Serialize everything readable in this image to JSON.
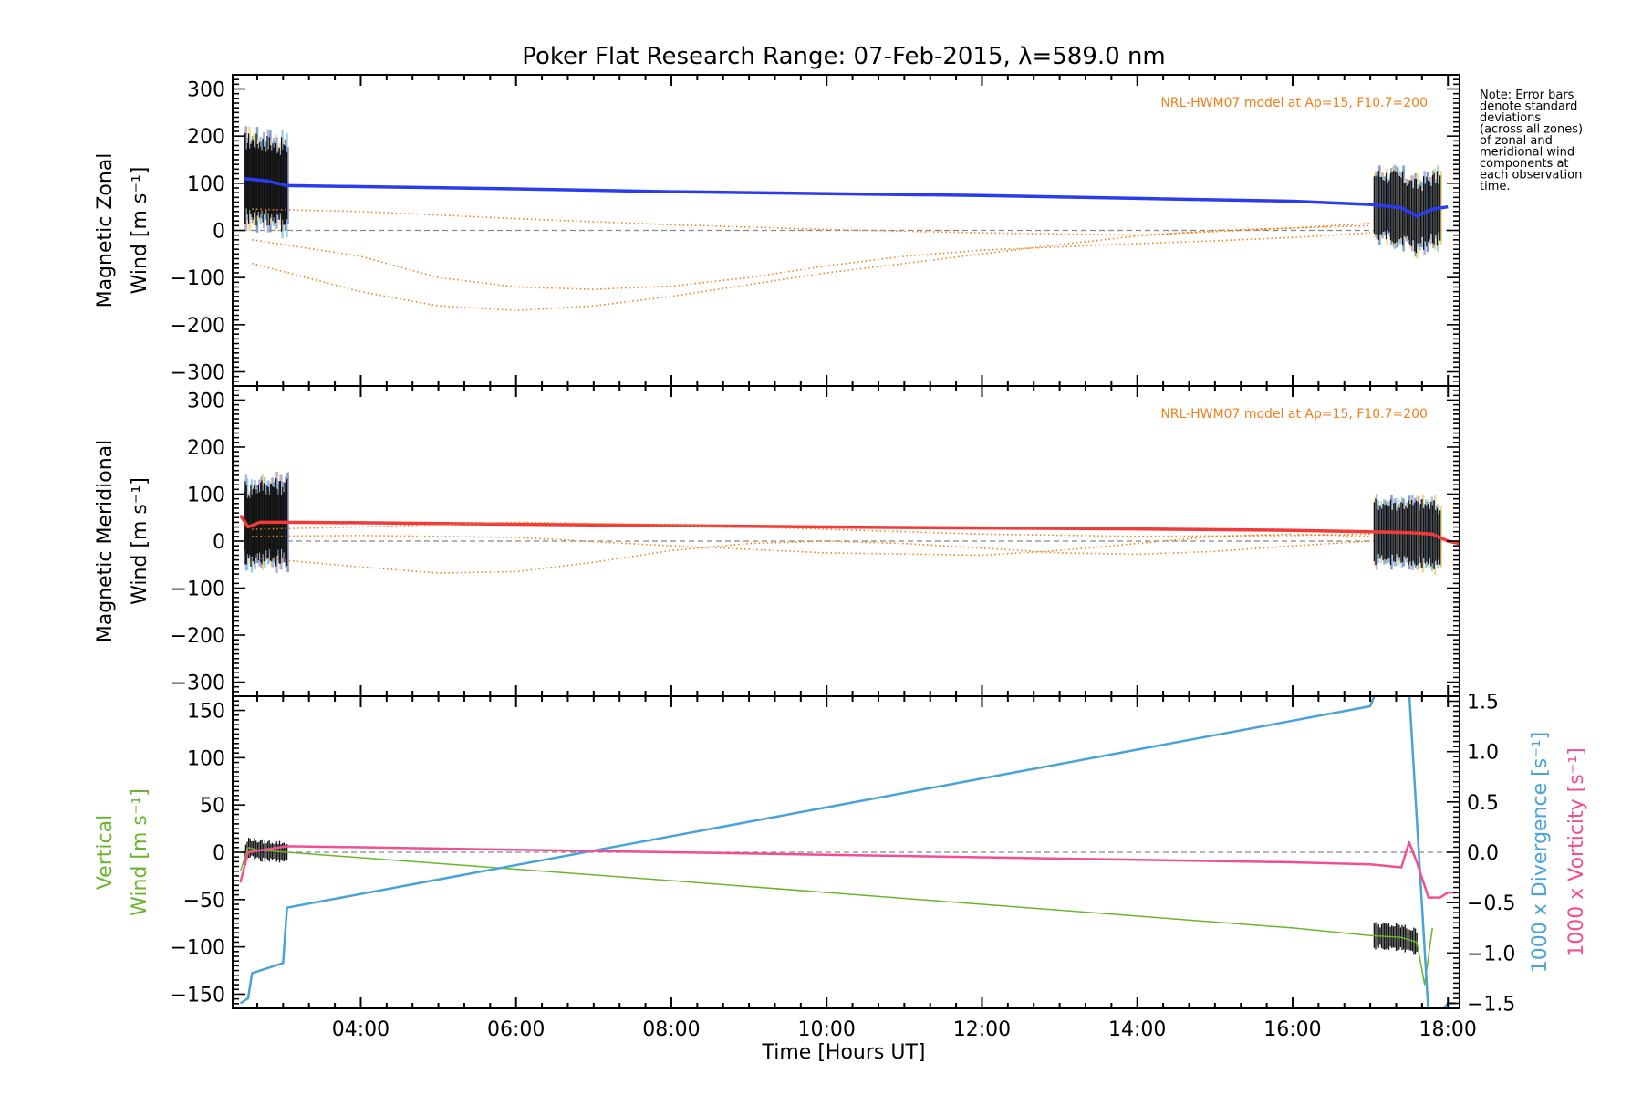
{
  "title": "Poker Flat Research Range: 07-Feb-2015, λ=589.0 nm",
  "xlabel": "Time [Hours UT]",
  "note": [
    "Note: Error bars",
    "denote standard",
    "deviations",
    "(across all zones)",
    "of zonal and",
    "meridional wind",
    "components at",
    "each observation",
    "time."
  ],
  "colors": {
    "zonal": "#2b3cf0",
    "meridional": "#f23a3a",
    "model": "#ef7f1a",
    "vertical": "#6ab52c",
    "divergence": "#4aa3d6",
    "vorticity": "#f0508f",
    "errorbar": "#111111",
    "zeroline": "#888888"
  },
  "chart_data": [
    {
      "type": "line",
      "panel": "zonal",
      "ylabel": "Magnetic Zonal",
      "ylabel2": "Wind [m s⁻¹]",
      "xlim": [
        2.35,
        18.15
      ],
      "ylim": [
        -330,
        330
      ],
      "xticks": [
        "04:00",
        "06:00",
        "08:00",
        "10:00",
        "12:00",
        "14:00",
        "16:00",
        "18:00"
      ],
      "yticks": [
        -300,
        -200,
        -100,
        0,
        100,
        200,
        300
      ],
      "annotation": "NRL-HWM07 model at Ap=15, F10.7=200",
      "series": [
        {
          "role": "measured",
          "x": [
            2.5,
            2.8,
            3.05,
            4.0,
            6.0,
            8.0,
            10.0,
            12.0,
            14.0,
            16.0,
            17.0,
            17.4,
            17.6,
            17.8,
            18.0
          ],
          "y": [
            110,
            105,
            95,
            93,
            88,
            82,
            78,
            74,
            68,
            62,
            55,
            48,
            30,
            45,
            50
          ]
        },
        {
          "role": "model",
          "x": [
            2.6,
            4.0,
            5.0,
            6.0,
            7.0,
            8.0,
            9.0,
            10.0,
            11.0,
            12.0,
            13.0,
            14.0,
            15.0,
            16.0,
            17.0
          ],
          "y": [
            -20,
            -55,
            -100,
            -120,
            -125,
            -118,
            -100,
            -75,
            -55,
            -42,
            -35,
            -28,
            -22,
            -15,
            -5
          ]
        },
        {
          "role": "model",
          "x": [
            2.6,
            4.0,
            5.0,
            6.0,
            7.0,
            8.0,
            9.0,
            10.0,
            11.0,
            12.0,
            13.0,
            14.0,
            15.0,
            16.0,
            17.0
          ],
          "y": [
            -70,
            -130,
            -160,
            -170,
            -160,
            -140,
            -115,
            -90,
            -70,
            -50,
            -30,
            -12,
            0,
            5,
            10
          ]
        },
        {
          "role": "model",
          "x": [
            2.6,
            4.0,
            6.0,
            8.0,
            10.0,
            12.0,
            14.0,
            16.0,
            17.0
          ],
          "y": [
            45,
            40,
            25,
            12,
            2,
            -5,
            -10,
            5,
            15
          ]
        }
      ]
    },
    {
      "type": "line",
      "panel": "meridional",
      "ylabel": "Magnetic Meridional",
      "ylabel2": "Wind [m s⁻¹]",
      "xlim": [
        2.35,
        18.15
      ],
      "ylim": [
        -330,
        330
      ],
      "xticks": [
        "04:00",
        "06:00",
        "08:00",
        "10:00",
        "12:00",
        "14:00",
        "16:00",
        "18:00"
      ],
      "yticks": [
        -300,
        -200,
        -100,
        0,
        100,
        200,
        300
      ],
      "annotation": "NRL-HWM07 model at Ap=15, F10.7=200",
      "series": [
        {
          "role": "measured",
          "x": [
            2.45,
            2.55,
            2.7,
            3.05,
            4.0,
            6.0,
            8.0,
            10.0,
            12.0,
            14.0,
            16.0,
            17.0,
            17.5,
            17.8,
            18.0,
            18.15
          ],
          "y": [
            55,
            30,
            40,
            40,
            39,
            36,
            33,
            30,
            28,
            26,
            23,
            20,
            18,
            15,
            0,
            -5
          ]
        },
        {
          "role": "model",
          "x": [
            2.6,
            4.0,
            5.0,
            6.0,
            7.0,
            8.0,
            9.0,
            10.0,
            11.0,
            12.0,
            13.0,
            14.0,
            15.0,
            16.0,
            17.0
          ],
          "y": [
            -35,
            -55,
            -68,
            -65,
            -45,
            -20,
            -5,
            0,
            -5,
            -15,
            -25,
            -28,
            -22,
            -10,
            0
          ]
        },
        {
          "role": "model",
          "x": [
            2.6,
            4.0,
            6.0,
            8.0,
            10.0,
            12.0,
            13.0,
            14.0,
            15.0,
            16.0,
            17.0
          ],
          "y": [
            10,
            12,
            8,
            -10,
            -25,
            -30,
            -20,
            -5,
            10,
            15,
            10
          ]
        },
        {
          "role": "model",
          "x": [
            2.6,
            4.0,
            6.0,
            8.0,
            10.0,
            12.0,
            14.0,
            16.0,
            17.0
          ],
          "y": [
            25,
            30,
            40,
            35,
            25,
            15,
            10,
            12,
            15
          ]
        }
      ]
    },
    {
      "type": "line",
      "panel": "vertical",
      "ylabel": "Vertical",
      "ylabel2": "Wind [m s⁻¹]",
      "y2label": "1000 x Divergence [s⁻¹]",
      "y3label": "1000 x Vorticity [s⁻¹]",
      "xlim": [
        2.35,
        18.15
      ],
      "ylim": [
        -165,
        165
      ],
      "y2lim": [
        -1.55,
        1.55
      ],
      "xticks": [
        "04:00",
        "06:00",
        "08:00",
        "10:00",
        "12:00",
        "14:00",
        "16:00",
        "18:00"
      ],
      "yticks": [
        -150,
        -100,
        -50,
        0,
        50,
        100,
        150
      ],
      "y2ticks": [
        -1.5,
        -1.0,
        -0.5,
        0.0,
        0.5,
        1.0,
        1.5
      ],
      "series": [
        {
          "role": "vertical wind",
          "axis": "left",
          "x": [
            2.45,
            2.55,
            2.7,
            3.05,
            8.0,
            12.0,
            16.0,
            17.0,
            17.4,
            17.6,
            17.7,
            17.8
          ],
          "y": [
            -20,
            5,
            2,
            0,
            -30,
            -55,
            -80,
            -88,
            -90,
            -95,
            -140,
            -80
          ]
        },
        {
          "role": "divergence",
          "axis": "right",
          "x": [
            2.45,
            2.55,
            2.6,
            3.0,
            3.05,
            17.0,
            17.05,
            17.5,
            17.75,
            17.9,
            18.0,
            18.1
          ],
          "y": [
            -1.5,
            -1.45,
            -1.2,
            -1.1,
            -0.55,
            1.45,
            1.55,
            1.6,
            -1.6,
            -1.6,
            -1.5,
            -1.5
          ]
        },
        {
          "role": "vorticity",
          "axis": "right",
          "x": [
            2.45,
            2.55,
            3.05,
            4.0,
            8.0,
            12.0,
            16.0,
            17.0,
            17.4,
            17.5,
            17.6,
            17.75,
            17.9,
            18.0,
            18.1
          ],
          "y": [
            -0.3,
            0.0,
            0.06,
            0.05,
            0.0,
            -0.05,
            -0.1,
            -0.12,
            -0.15,
            0.1,
            -0.1,
            -0.45,
            -0.45,
            -0.4,
            -0.4
          ]
        }
      ]
    }
  ]
}
